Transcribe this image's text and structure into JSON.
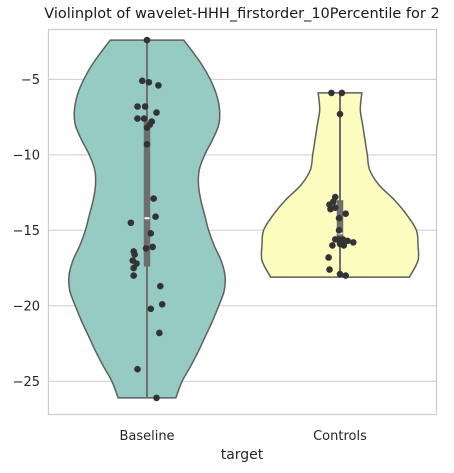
{
  "chart_data": {
    "type": "violin",
    "title": "Violinplot of wavelet-HHH_firstorder_10Percentile for 2",
    "xlabel": "target",
    "ylabel": "",
    "ylim": [
      -27.2,
      -1.7
    ],
    "yticks": [
      -5,
      -10,
      -15,
      -20,
      -25
    ],
    "ytick_labels": [
      "−5",
      "−10",
      "−15",
      "−20",
      "−25"
    ],
    "grid": true,
    "categories": [
      "Baseline",
      "Controls"
    ],
    "series": [
      {
        "category": "Baseline",
        "color": "#95cbc2",
        "min": -26.1,
        "max": -2.4,
        "q1": -17.4,
        "median": -14.2,
        "q3": -7.8,
        "density": [
          [
            -26.1,
            0.37
          ],
          [
            -25.0,
            0.45
          ],
          [
            -24.0,
            0.56
          ],
          [
            -23.0,
            0.66
          ],
          [
            -22.0,
            0.75
          ],
          [
            -21.0,
            0.84
          ],
          [
            -20.0,
            0.92
          ],
          [
            -19.0,
            0.99
          ],
          [
            -18.0,
            1.0
          ],
          [
            -17.0,
            0.95
          ],
          [
            -16.0,
            0.86
          ],
          [
            -15.0,
            0.79
          ],
          [
            -14.0,
            0.74
          ],
          [
            -13.0,
            0.69
          ],
          [
            -12.0,
            0.66
          ],
          [
            -11.0,
            0.67
          ],
          [
            -10.0,
            0.74
          ],
          [
            -9.0,
            0.84
          ],
          [
            -8.0,
            0.92
          ],
          [
            -7.0,
            0.93
          ],
          [
            -6.0,
            0.89
          ],
          [
            -5.0,
            0.81
          ],
          [
            -4.0,
            0.7
          ],
          [
            -3.0,
            0.56
          ],
          [
            -2.4,
            0.47
          ]
        ],
        "points": [
          [
            0.0,
            -2.4
          ],
          [
            -0.05,
            -5.1
          ],
          [
            0.02,
            -5.2
          ],
          [
            0.12,
            -5.4
          ],
          [
            -0.1,
            -6.8
          ],
          [
            -0.02,
            -6.8
          ],
          [
            0.1,
            -7.2
          ],
          [
            -0.1,
            -7.6
          ],
          [
            -0.03,
            -7.6
          ],
          [
            0.05,
            -7.8
          ],
          [
            0.0,
            -8.2
          ],
          [
            0.03,
            -8.0
          ],
          [
            0.0,
            -9.3
          ],
          [
            0.07,
            -12.9
          ],
          [
            0.09,
            -14.1
          ],
          [
            -0.17,
            -14.5
          ],
          [
            0.04,
            -15.2
          ],
          [
            0.06,
            -16.1
          ],
          [
            -0.01,
            -16.2
          ],
          [
            -0.14,
            -16.4
          ],
          [
            -0.13,
            -16.6
          ],
          [
            -0.15,
            -17.0
          ],
          [
            -0.11,
            -17.2
          ],
          [
            -0.14,
            -17.5
          ],
          [
            -0.14,
            -18.0
          ],
          [
            0.14,
            -18.7
          ],
          [
            0.16,
            -19.9
          ],
          [
            0.04,
            -20.2
          ],
          [
            0.13,
            -21.8
          ],
          [
            -0.1,
            -24.2
          ],
          [
            0.1,
            -26.1
          ]
        ]
      },
      {
        "category": "Controls",
        "color": "#fcfcbf",
        "min": -18.1,
        "max": -5.9,
        "q1": -15.6,
        "median": -15.2,
        "q3": -13.0,
        "density": [
          [
            -18.1,
            0.89
          ],
          [
            -17.0,
            1.0
          ],
          [
            -16.0,
            1.0
          ],
          [
            -15.0,
            0.98
          ],
          [
            -14.0,
            0.86
          ],
          [
            -13.0,
            0.7
          ],
          [
            -12.0,
            0.5
          ],
          [
            -11.0,
            0.38
          ],
          [
            -10.0,
            0.35
          ],
          [
            -9.0,
            0.32
          ],
          [
            -8.0,
            0.29
          ],
          [
            -7.0,
            0.26
          ],
          [
            -5.9,
            0.28
          ]
        ],
        "points": [
          [
            -0.09,
            -5.9
          ],
          [
            0.02,
            -5.9
          ],
          [
            0.0,
            -7.3
          ],
          [
            -0.05,
            -12.8
          ],
          [
            -0.07,
            -13.1
          ],
          [
            -0.11,
            -13.3
          ],
          [
            -0.1,
            -13.6
          ],
          [
            -0.05,
            -13.5
          ],
          [
            0.06,
            -13.9
          ],
          [
            -0.01,
            -14.2
          ],
          [
            -0.01,
            -15.0
          ],
          [
            -0.05,
            -15.6
          ],
          [
            -0.02,
            -15.6
          ],
          [
            0.0,
            -15.8
          ],
          [
            0.03,
            -15.6
          ],
          [
            0.08,
            -15.7
          ],
          [
            -0.08,
            -16.0
          ],
          [
            0.0,
            -15.9
          ],
          [
            0.04,
            -16.0
          ],
          [
            0.14,
            -15.8
          ],
          [
            -0.12,
            -16.8
          ],
          [
            -0.11,
            -17.6
          ],
          [
            0.0,
            -17.9
          ],
          [
            0.06,
            -18.0
          ]
        ]
      }
    ]
  }
}
